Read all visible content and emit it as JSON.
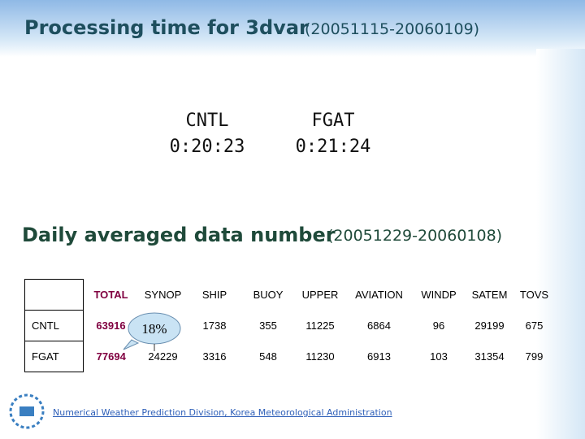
{
  "header": {
    "title": "Processing time for 3dvar",
    "period": "(20051115-20060109)"
  },
  "timings": [
    {
      "label": "CNTL",
      "time": "0:20:23"
    },
    {
      "label": "FGAT",
      "time": "0:21:24"
    }
  ],
  "section": {
    "title": "Daily averaged data number",
    "period": "(20051229-20060108)"
  },
  "table": {
    "columns": [
      "TOTAL",
      "SYNOP",
      "SHIP",
      "BUOY",
      "UPPER",
      "AVIATION",
      "WINDP",
      "SATEM",
      "TOVS"
    ],
    "rows": [
      {
        "label": "CNTL",
        "cells": [
          63916,
          null,
          1738,
          355,
          11225,
          6864,
          96,
          29199,
          675
        ]
      },
      {
        "label": "FGAT",
        "cells": [
          77694,
          24229,
          3316,
          548,
          11230,
          6913,
          103,
          31354,
          799
        ]
      }
    ]
  },
  "callout": "18%",
  "footer": "Numerical Weather Prediction Division, Korea Meteorological Administration"
}
